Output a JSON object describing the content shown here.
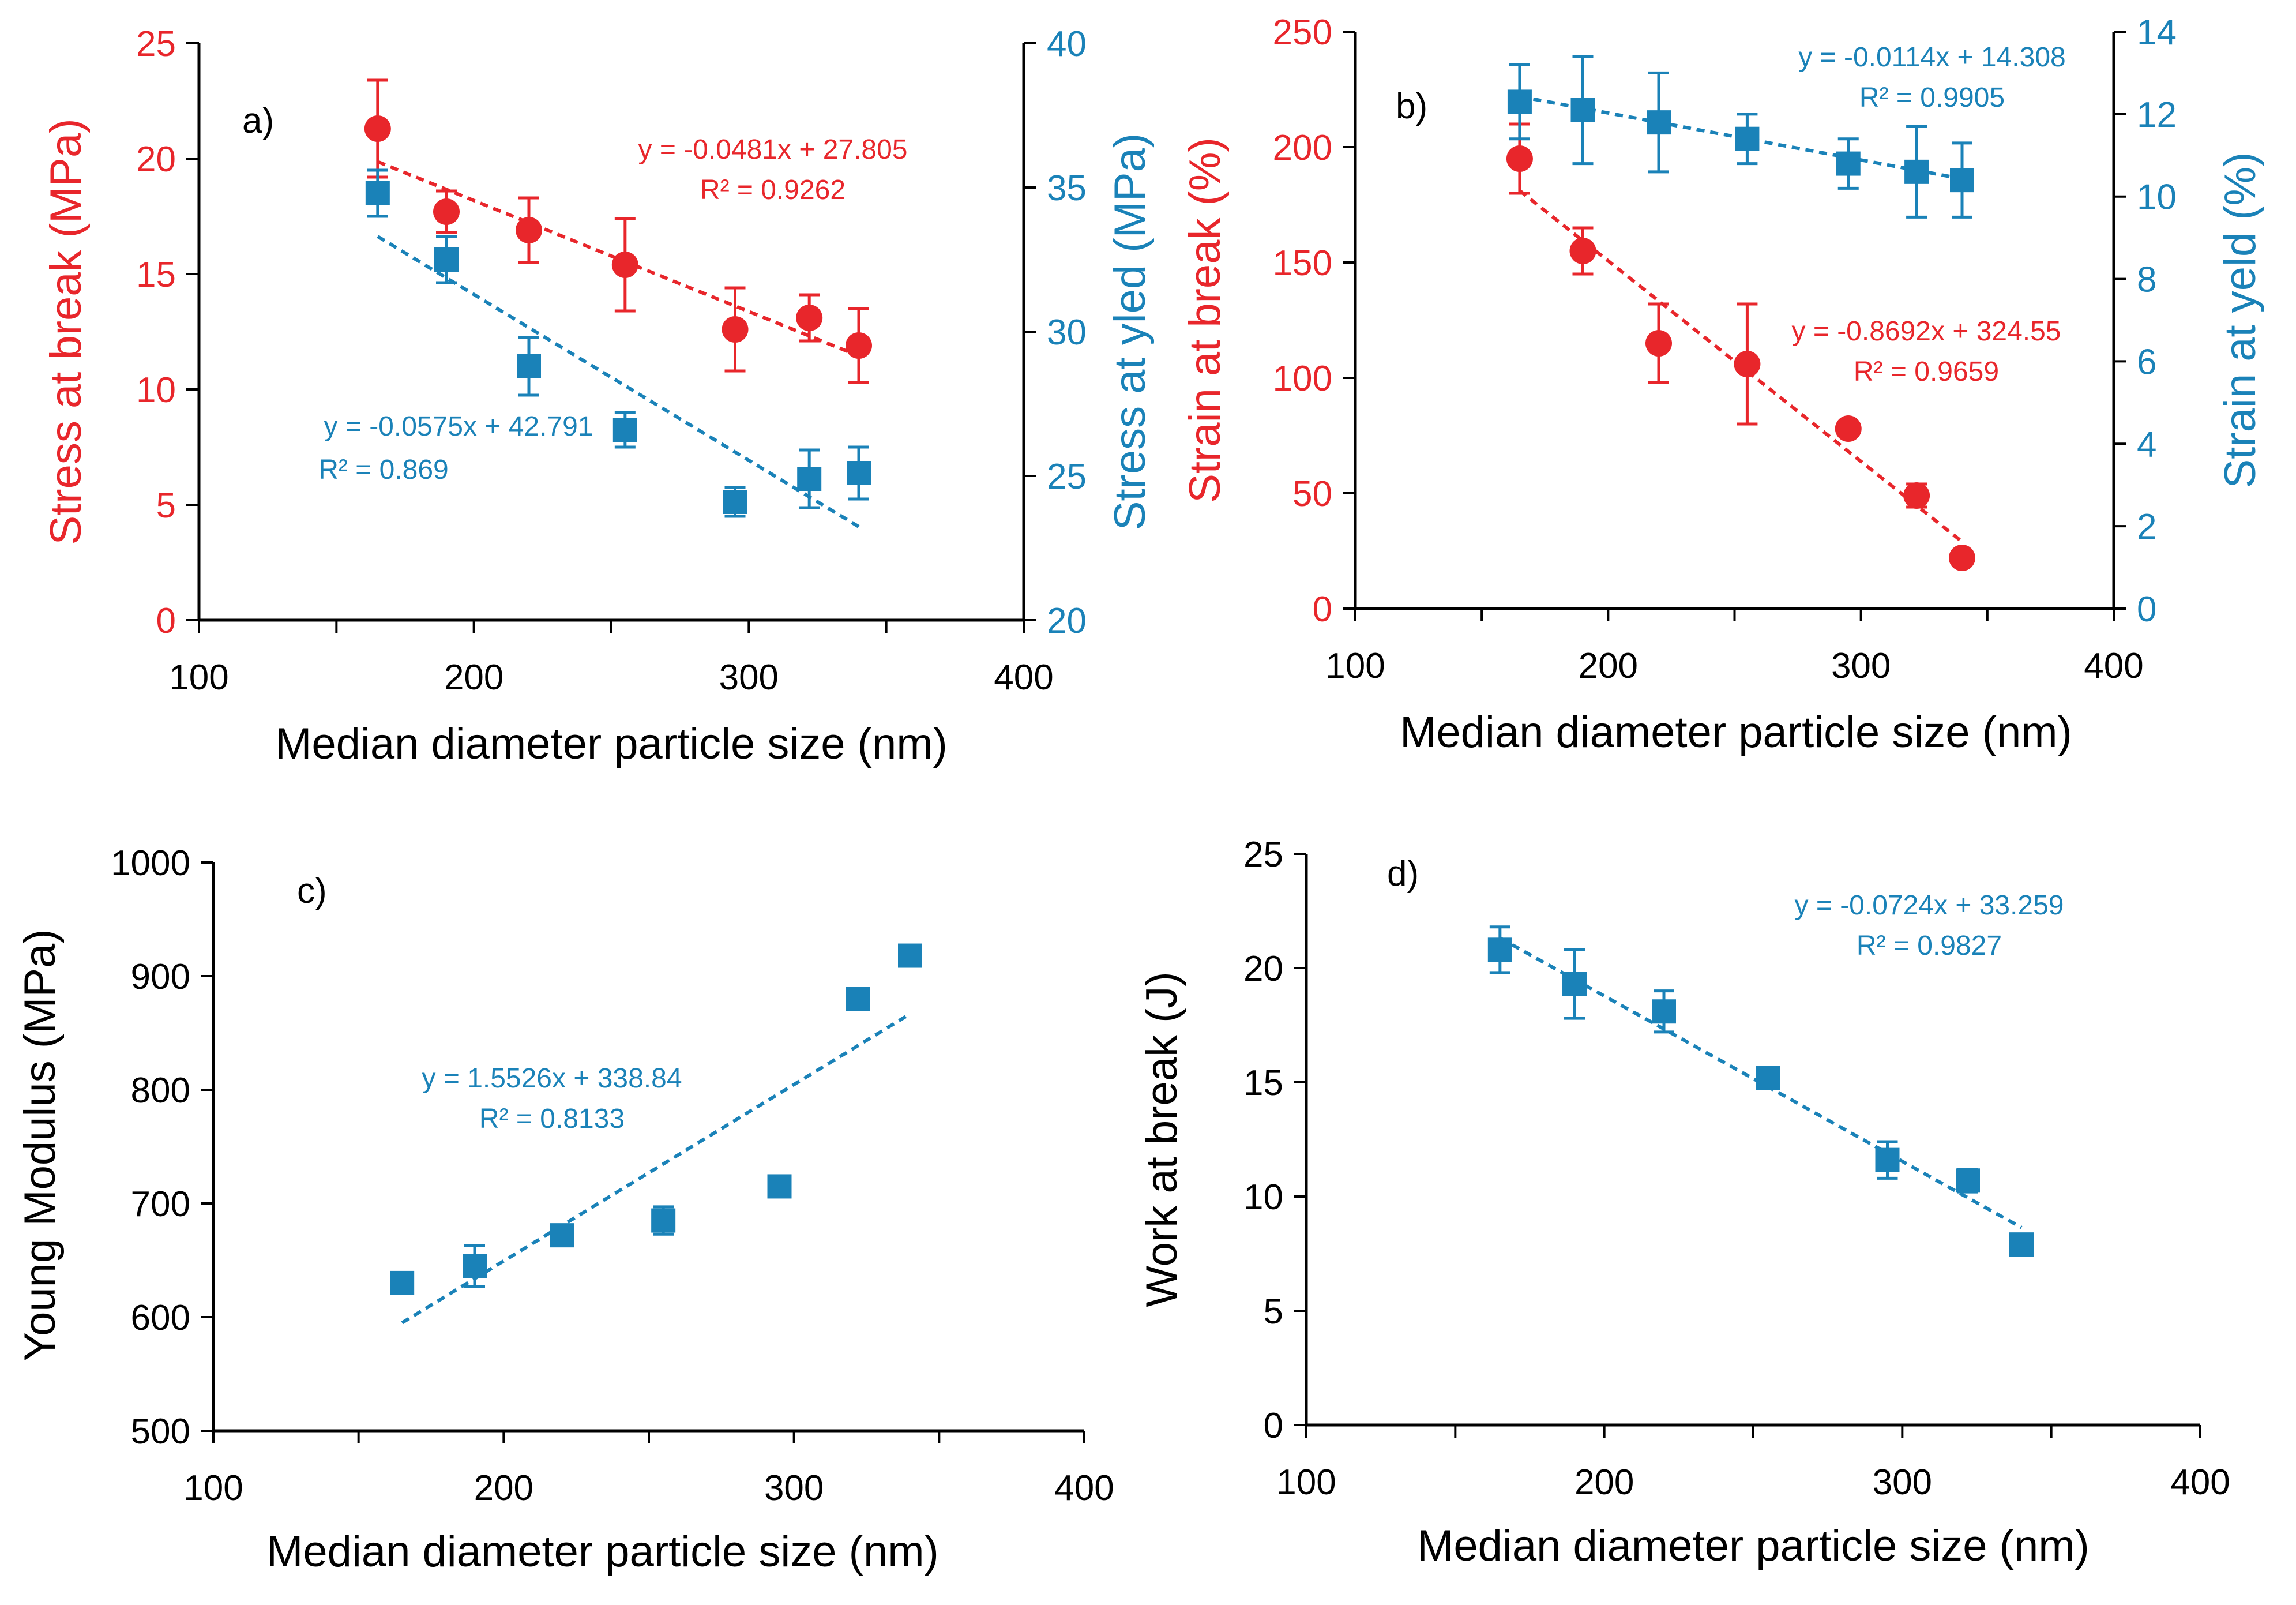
{
  "colors": {
    "red": "#e8262b",
    "blue": "#1a82b8",
    "black": "#000000"
  },
  "chart_data": [
    {
      "panel": "a)",
      "type": "scatter",
      "xlabel": "Median diameter particle size (nm)",
      "xlim": [
        100,
        400
      ],
      "xticks": [
        "100",
        "200",
        "300",
        "400"
      ],
      "ylabel_left": "Stress at break (MPa)",
      "ylim_left": [
        0,
        25
      ],
      "yticks_left": [
        "0",
        "5",
        "10",
        "15",
        "20",
        "25"
      ],
      "ylabel_right": "Stress at yled (MPa)",
      "ylim_right": [
        20,
        40
      ],
      "yticks_right": [
        "20",
        "25",
        "30",
        "35",
        "40"
      ],
      "series": [
        {
          "name": "Stress at break",
          "axis": "left",
          "color": "red",
          "marker": "circle",
          "x": [
            165,
            190,
            220,
            255,
            295,
            322,
            340
          ],
          "y": [
            21.3,
            17.7,
            16.9,
            15.4,
            12.6,
            13.1,
            11.9
          ],
          "err": [
            2.1,
            0.9,
            1.4,
            2.0,
            1.8,
            1.0,
            1.6
          ],
          "fit": {
            "slope": -0.0481,
            "intercept": 27.805,
            "x_range": [
              165,
              340
            ]
          },
          "equation": "y = -0.0481x + 27.805",
          "r2": "R² = 0.9262"
        },
        {
          "name": "Stress at yled",
          "axis": "right",
          "color": "blue",
          "marker": "square",
          "x": [
            165,
            190,
            220,
            255,
            295,
            322,
            340
          ],
          "y": [
            34.8,
            32.5,
            28.8,
            26.6,
            24.1,
            24.9,
            25.1
          ],
          "err": [
            0.8,
            0.8,
            1.0,
            0.6,
            0.5,
            1.0,
            0.9
          ],
          "fit": {
            "slope": -0.0575,
            "intercept": 42.791,
            "x_range": [
              165,
              340
            ]
          },
          "equation": "y = -0.0575x + 42.791",
          "r2": "R² = 0.869"
        }
      ]
    },
    {
      "panel": "b)",
      "type": "scatter",
      "xlabel": "Median diameter particle size (nm)",
      "xlim": [
        100,
        400
      ],
      "xticks": [
        "100",
        "200",
        "300",
        "400"
      ],
      "ylabel_left": "Strain at break (%)",
      "ylim_left": [
        0,
        250
      ],
      "yticks_left": [
        "0",
        "50",
        "100",
        "150",
        "200",
        "250"
      ],
      "ylabel_right": "Strain at yeld (%)",
      "ylim_right": [
        0,
        14
      ],
      "yticks_right": [
        "0",
        "2",
        "4",
        "6",
        "8",
        "10",
        "12",
        "14"
      ],
      "series": [
        {
          "name": "Strain at break",
          "axis": "left",
          "color": "red",
          "marker": "circle",
          "x": [
            165,
            190,
            220,
            255,
            295,
            322,
            340
          ],
          "y": [
            195,
            155,
            115,
            106,
            78,
            49,
            22
          ],
          "err": [
            15,
            10,
            17,
            26,
            0,
            5,
            0
          ],
          "fit": {
            "slope": -0.8692,
            "intercept": 324.55,
            "x_range": [
              165,
              340
            ]
          },
          "equation": "y = -0.8692x + 324.55",
          "r2": "R² = 0.9659"
        },
        {
          "name": "Strain at yeld",
          "axis": "right",
          "color": "blue",
          "marker": "square",
          "x": [
            165,
            190,
            220,
            255,
            295,
            322,
            340
          ],
          "y": [
            12.3,
            12.1,
            11.8,
            11.4,
            10.8,
            10.6,
            10.4
          ],
          "err": [
            0.9,
            1.3,
            1.2,
            0.6,
            0.6,
            1.1,
            0.9
          ],
          "fit": {
            "slope": -0.0114,
            "intercept": 14.308,
            "x_range": [
              165,
              340
            ]
          },
          "equation": "y = -0.0114x + 14.308",
          "r2": "R² = 0.9905"
        }
      ]
    },
    {
      "panel": "c)",
      "type": "scatter",
      "xlabel": "Median diameter particle size (nm)",
      "xlim": [
        100,
        400
      ],
      "xticks": [
        "100",
        "200",
        "300",
        "400"
      ],
      "ylabel_left": "Young Modulus (MPa)",
      "ylim_left": [
        500,
        1000
      ],
      "yticks_left": [
        "500",
        "600",
        "700",
        "800",
        "900",
        "1000"
      ],
      "series": [
        {
          "name": "Young Modulus",
          "axis": "left",
          "color": "blue",
          "marker": "square",
          "x": [
            165,
            190,
            220,
            255,
            295,
            322,
            340
          ],
          "y": [
            630,
            645,
            672,
            685,
            715,
            880,
            918
          ],
          "err": [
            0,
            18,
            0,
            12,
            0,
            0,
            0
          ],
          "fit": {
            "slope": 1.5526,
            "intercept": 338.84,
            "x_range": [
              165,
              340
            ]
          },
          "equation": "y = 1.5526x + 338.84",
          "r2": "R² = 0.8133"
        }
      ]
    },
    {
      "panel": "d)",
      "type": "scatter",
      "xlabel": "Median diameter particle size (nm)",
      "xlim": [
        100,
        400
      ],
      "xticks": [
        "100",
        "200",
        "300",
        "400"
      ],
      "ylabel_left": "Work at break (J)",
      "ylim_left": [
        0,
        25
      ],
      "yticks_left": [
        "0",
        "5",
        "10",
        "15",
        "20",
        "25"
      ],
      "series": [
        {
          "name": "Work at break",
          "axis": "left",
          "color": "blue",
          "marker": "square",
          "x": [
            165,
            190,
            220,
            255,
            295,
            322,
            340
          ],
          "y": [
            20.8,
            19.3,
            18.1,
            15.2,
            11.6,
            10.7,
            7.9
          ],
          "err": [
            1.0,
            1.5,
            0.9,
            0,
            0.8,
            0.5,
            0
          ],
          "fit": {
            "slope": -0.0724,
            "intercept": 33.259,
            "x_range": [
              165,
              340
            ]
          },
          "equation": "y = -0.0724x + 33.259",
          "r2": "R² = 0.9827"
        }
      ]
    }
  ]
}
